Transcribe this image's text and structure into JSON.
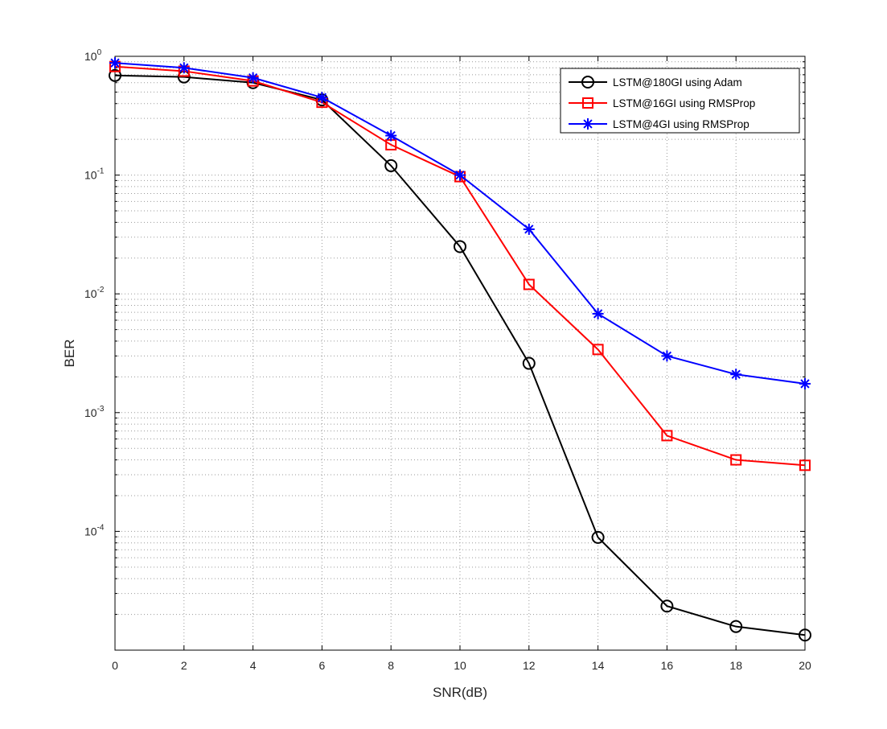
{
  "chart_data": {
    "type": "line",
    "title": "",
    "xlabel": "SNR(dB)",
    "ylabel": "BER",
    "yscale": "log",
    "grid": true,
    "legend_position": "top-right",
    "xlim": [
      0,
      20
    ],
    "ylim": [
      1e-05,
      1
    ],
    "x": [
      0,
      2,
      4,
      6,
      8,
      10,
      12,
      14,
      16,
      18,
      20
    ],
    "x_ticks": [
      "0",
      "2",
      "4",
      "6",
      "8",
      "10",
      "12",
      "14",
      "16",
      "18",
      "20"
    ],
    "y_ticks": [
      {
        "value": 1,
        "base": "10",
        "exp": "0"
      },
      {
        "value": 0.1,
        "base": "10",
        "exp": "-1"
      },
      {
        "value": 0.01,
        "base": "10",
        "exp": "-2"
      },
      {
        "value": 0.001,
        "base": "10",
        "exp": "-3"
      },
      {
        "value": 0.0001,
        "base": "10",
        "exp": "-4"
      }
    ],
    "series": [
      {
        "name": "LSTM@180GI using Adam",
        "color": "#000000",
        "marker": "circle",
        "values": [
          0.69,
          0.67,
          0.6,
          0.43,
          0.12,
          0.025,
          0.0026,
          8.9e-05,
          2.35e-05,
          1.58e-05,
          1.34e-05
        ]
      },
      {
        "name": "LSTM@16GI using RMSProp",
        "color": "#ff0000",
        "marker": "square",
        "values": [
          0.82,
          0.75,
          0.62,
          0.41,
          0.18,
          0.097,
          0.012,
          0.0034,
          0.00064,
          0.0004,
          0.00036
        ]
      },
      {
        "name": "LSTM@4GI using RMSProp",
        "color": "#0000ff",
        "marker": "asterisk",
        "values": [
          0.88,
          0.8,
          0.66,
          0.45,
          0.215,
          0.1,
          0.035,
          0.0068,
          0.003,
          0.0021,
          0.00175
        ]
      }
    ]
  }
}
